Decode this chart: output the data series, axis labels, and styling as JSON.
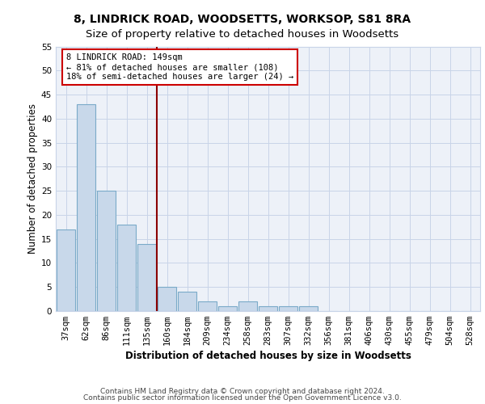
{
  "title1": "8, LINDRICK ROAD, WOODSETTS, WORKSOP, S81 8RA",
  "title2": "Size of property relative to detached houses in Woodsetts",
  "xlabel": "Distribution of detached houses by size in Woodsetts",
  "ylabel": "Number of detached properties",
  "categories": [
    "37sqm",
    "62sqm",
    "86sqm",
    "111sqm",
    "135sqm",
    "160sqm",
    "184sqm",
    "209sqm",
    "234sqm",
    "258sqm",
    "283sqm",
    "307sqm",
    "332sqm",
    "356sqm",
    "381sqm",
    "406sqm",
    "430sqm",
    "455sqm",
    "479sqm",
    "504sqm",
    "528sqm"
  ],
  "values": [
    17,
    43,
    25,
    18,
    14,
    5,
    4,
    2,
    1,
    2,
    1,
    1,
    1,
    0,
    0,
    0,
    0,
    0,
    0,
    0,
    0
  ],
  "bar_color": "#c8d8ea",
  "bar_edge_color": "#7aaac8",
  "grid_color": "#c8d4e8",
  "background_color": "#edf1f8",
  "red_line_x": 4.5,
  "red_line_color": "#8b0000",
  "annotation_text": "8 LINDRICK ROAD: 149sqm\n← 81% of detached houses are smaller (108)\n18% of semi-detached houses are larger (24) →",
  "annotation_box_color": "#cc0000",
  "ylim": [
    0,
    55
  ],
  "yticks": [
    0,
    5,
    10,
    15,
    20,
    25,
    30,
    35,
    40,
    45,
    50,
    55
  ],
  "footer1": "Contains HM Land Registry data © Crown copyright and database right 2024.",
  "footer2": "Contains public sector information licensed under the Open Government Licence v3.0.",
  "title1_fontsize": 10,
  "title2_fontsize": 9.5,
  "xlabel_fontsize": 8.5,
  "ylabel_fontsize": 8.5,
  "tick_fontsize": 7.5,
  "footer_fontsize": 6.5,
  "ann_fontsize": 7.5
}
